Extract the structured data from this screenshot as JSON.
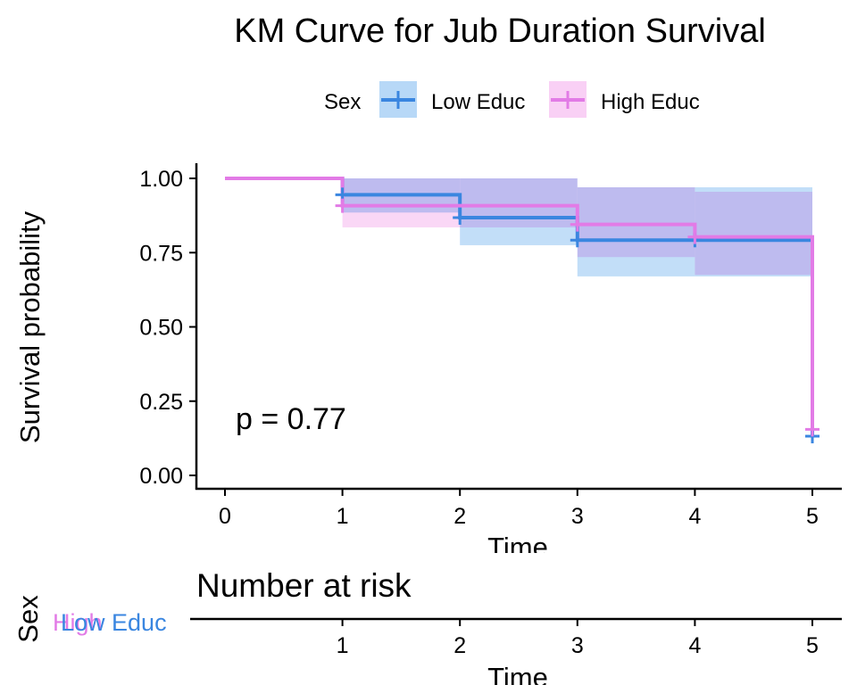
{
  "chart_data": {
    "type": "line",
    "subtype": "kaplan-meier",
    "title": "KM Curve for Jub Duration Survival",
    "legend": {
      "title": "Sex",
      "position": "top"
    },
    "xlabel": "Time",
    "ylabel": "Survival probability",
    "xlim": [
      0,
      5
    ],
    "ylim": [
      0,
      1
    ],
    "x_ticks": [
      "0",
      "1",
      "2",
      "3",
      "4",
      "5"
    ],
    "y_ticks": [
      "0.00",
      "0.25",
      "0.50",
      "0.75",
      "1.00"
    ],
    "grid": false,
    "annotation": "p = 0.77",
    "series": [
      {
        "name": "Low Educ",
        "color": "#3a86e0",
        "band_color": "#b7d8f7",
        "steps": [
          {
            "x": 0,
            "y": 1.0
          },
          {
            "x": 1,
            "y": 0.945
          },
          {
            "x": 2,
            "y": 0.868
          },
          {
            "x": 3,
            "y": 0.792
          },
          {
            "x": 4,
            "y": 0.792
          },
          {
            "x": 5,
            "y": 0.132
          }
        ],
        "ci_lower": [
          1.0,
          0.885,
          0.775,
          0.67,
          0.67,
          0.67
        ],
        "ci_upper": [
          1.0,
          1.0,
          1.0,
          0.97,
          0.97,
          0.95
        ],
        "censor": [
          {
            "x": 1,
            "y": 0.945
          },
          {
            "x": 2,
            "y": 0.868
          },
          {
            "x": 3,
            "y": 0.792
          },
          {
            "x": 4,
            "y": 0.792
          },
          {
            "x": 5,
            "y": 0.132
          }
        ]
      },
      {
        "name": "High Educ",
        "color": "#e27be6",
        "band_color": "#f9d0f5",
        "steps": [
          {
            "x": 0,
            "y": 1.0
          },
          {
            "x": 1,
            "y": 0.908
          },
          {
            "x": 2,
            "y": 0.908
          },
          {
            "x": 3,
            "y": 0.845
          },
          {
            "x": 4,
            "y": 0.803
          },
          {
            "x": 5,
            "y": 0.155
          }
        ],
        "ci_lower": [
          1.0,
          0.835,
          0.835,
          0.735,
          0.675,
          0.675
        ],
        "ci_upper": [
          1.0,
          1.0,
          1.0,
          0.97,
          0.955,
          0.955
        ],
        "censor": [
          {
            "x": 1,
            "y": 0.908
          },
          {
            "x": 3,
            "y": 0.845
          },
          {
            "x": 4,
            "y": 0.803
          },
          {
            "x": 5,
            "y": 0.155
          }
        ]
      }
    ],
    "overlap_color": "#c7bdf3",
    "risk_table": {
      "title": "Number at risk",
      "ylabel": "Sex",
      "xlabel": "Time",
      "x_ticks": [
        "1",
        "2",
        "3",
        "4",
        "5"
      ],
      "rows": [
        {
          "label": "High",
          "color": "#e27be6"
        },
        {
          "label": "Low Educ",
          "color": "#3a86e0"
        }
      ]
    }
  }
}
